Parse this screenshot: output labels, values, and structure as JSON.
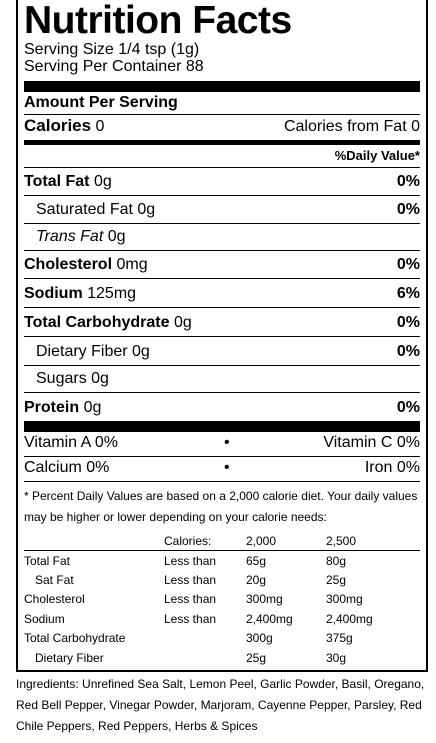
{
  "title": "Nutrition Facts",
  "serving_size": "Serving Size 1/4 tsp (1g)",
  "servings_per_container": "Serving Per Container 88",
  "amount_per_serving": "Amount Per Serving",
  "calories": {
    "label": "Calories",
    "value": "0",
    "from_fat": "Calories from Fat 0"
  },
  "daily_value_header": "%Daily Value*",
  "nutrients": {
    "total_fat": {
      "label": "Total Fat",
      "value": "0g",
      "dv": "0%"
    },
    "saturated_fat": {
      "label": "Saturated Fat",
      "value": "0g",
      "dv": "0%"
    },
    "trans_fat": {
      "label": "Trans Fat",
      "value": "0g"
    },
    "cholesterol": {
      "label": "Cholesterol",
      "value": "0mg",
      "dv": "0%"
    },
    "sodium": {
      "label": "Sodium",
      "value": "125mg",
      "dv": "6%"
    },
    "total_carbohydrate": {
      "label": "Total Carbohydrate",
      "value": "0g",
      "dv": "0%"
    },
    "dietary_fiber": {
      "label": "Dietary Fiber",
      "value": "0g",
      "dv": "0%"
    },
    "sugars": {
      "label": "Sugars",
      "value": "0g"
    },
    "protein": {
      "label": "Protein",
      "value": "0g",
      "dv": "0%"
    }
  },
  "vitamins": {
    "vitamin_a": "Vitamin A 0%",
    "vitamin_c": "Vitamin C 0%",
    "calcium": "Calcium 0%",
    "iron": "Iron 0%",
    "bullet": "•"
  },
  "footnote": "* Percent Daily Values are based on a 2,000 calorie diet. Your daily values may be higher or lower depending on your calorie needs:",
  "dv_table": {
    "header": [
      "",
      "Calories:",
      "2,000",
      "2,500"
    ],
    "rows": [
      [
        "Total Fat",
        "Less than",
        "65g",
        "80g"
      ],
      [
        "Sat Fat",
        "Less than",
        "20g",
        "25g"
      ],
      [
        "Cholesterol",
        "Less than",
        "300mg",
        "300mg"
      ],
      [
        "Sodium",
        "Less than",
        "2,400mg",
        "2,400mg"
      ],
      [
        "Total Carbohydrate",
        "",
        "300g",
        "375g"
      ],
      [
        "Dietary Fiber",
        "",
        "25g",
        "30g"
      ]
    ]
  },
  "ingredients": "Ingredients: Unrefined Sea Salt, Lemon Peel, Garlic Powder, Basil, Oregano, Red Bell Pepper, Vinegar Powder, Marjoram, Cayenne Pepper, Parsley, Red Chile Peppers, Red Peppers, Herbs & Spices"
}
